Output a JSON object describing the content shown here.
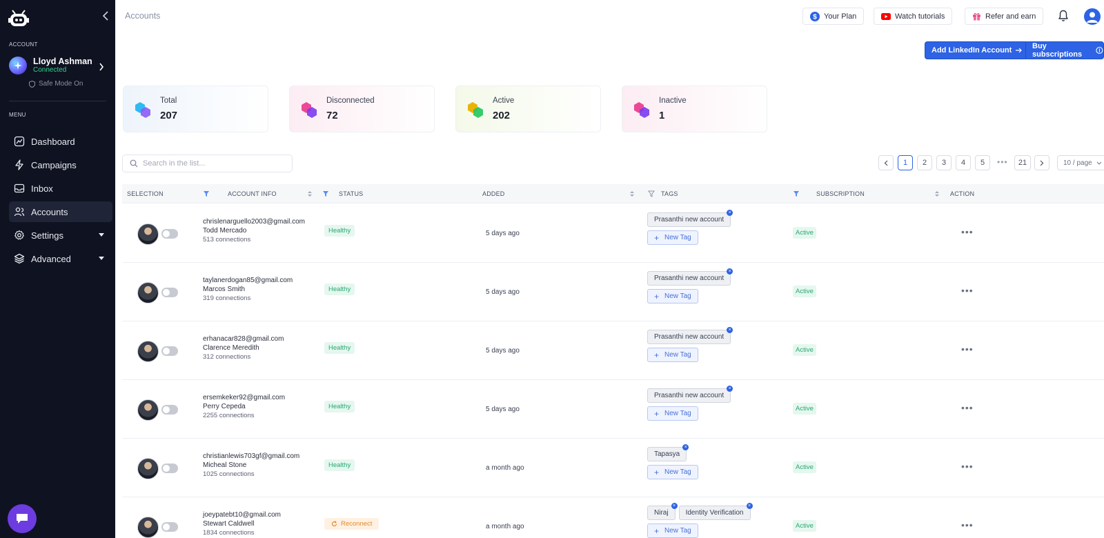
{
  "sidebar": {
    "account_section_label": "ACCOUNT",
    "profile_name": "Lloyd Ashman",
    "profile_status": "Connected",
    "safe_mode": "Safe Mode On",
    "menu_section_label": "MENU",
    "menu": [
      {
        "label": "Dashboard",
        "icon": "dashboard-icon"
      },
      {
        "label": "Campaigns",
        "icon": "lightning-icon"
      },
      {
        "label": "Inbox",
        "icon": "inbox-icon"
      },
      {
        "label": "Accounts",
        "icon": "users-icon",
        "active": true
      },
      {
        "label": "Settings",
        "icon": "gear-icon",
        "has_submenu": true
      },
      {
        "label": "Advanced",
        "icon": "layers-icon",
        "has_submenu": true
      }
    ]
  },
  "header": {
    "title": "Accounts",
    "your_plan": "Your Plan",
    "watch_tutorials": "Watch tutorials",
    "refer_and_earn": "Refer and earn",
    "add_linkedin_account": "Add LinkedIn Account",
    "buy_subscriptions": "Buy subscriptions"
  },
  "stats": [
    {
      "label": "Total",
      "value": "207",
      "bg": "#eef4fb",
      "colors": [
        "#2fb9f5",
        "#8b5cf6"
      ]
    },
    {
      "label": "Disconnected",
      "value": "72",
      "bg": "#fcedf3",
      "colors": [
        "#ec4899",
        "#7c3aed"
      ]
    },
    {
      "label": "Active",
      "value": "202",
      "bg": "#f4f9e9",
      "colors": [
        "#eab308",
        "#22c55e"
      ]
    },
    {
      "label": "Inactive",
      "value": "1",
      "bg": "#fcedf3",
      "colors": [
        "#ec4899",
        "#7c3aed"
      ]
    }
  ],
  "search": {
    "placeholder": "Search in the list..."
  },
  "pagination": {
    "pages": [
      "1",
      "2",
      "3",
      "4",
      "5"
    ],
    "current": "1",
    "ellipsis": "•••",
    "last": "21",
    "page_size": "10 / page"
  },
  "table": {
    "columns": {
      "selection": "SELECTION",
      "account_info": "ACCOUNT INFO",
      "status": "STATUS",
      "added": "ADDED",
      "tags": "TAGS",
      "subscription": "SUBSCRIPTION",
      "action": "ACTION"
    },
    "new_tag_label": "New Tag",
    "rows": [
      {
        "email": "chrislenarguello2003@gmail.com",
        "name": "Todd Mercado",
        "connections": "513 connections",
        "status": "Healthy",
        "status_type": "healthy",
        "added": "5 days ago",
        "tags": [
          "Prasanthi new account"
        ],
        "subscription": "Active"
      },
      {
        "email": "taylanerdogan85@gmail.com",
        "name": "Marcos Smith",
        "connections": "319 connections",
        "status": "Healthy",
        "status_type": "healthy",
        "added": "5 days ago",
        "tags": [
          "Prasanthi new account"
        ],
        "subscription": "Active"
      },
      {
        "email": "erhanacar828@gmail.com",
        "name": "Clarence Meredith",
        "connections": "312 connections",
        "status": "Healthy",
        "status_type": "healthy",
        "added": "5 days ago",
        "tags": [
          "Prasanthi new account"
        ],
        "subscription": "Active"
      },
      {
        "email": "ersemkeker92@gmail.com",
        "name": "Perry Cepeda",
        "connections": "2255 connections",
        "status": "Healthy",
        "status_type": "healthy",
        "added": "5 days ago",
        "tags": [
          "Prasanthi new account"
        ],
        "subscription": "Active"
      },
      {
        "email": "christianlewis703gf@gmail.com",
        "name": "Micheal Stone",
        "connections": "1025 connections",
        "status": "Healthy",
        "status_type": "healthy",
        "added": "a month ago",
        "tags": [
          "Tapasya"
        ],
        "subscription": "Active"
      },
      {
        "email": "joeypatebt10@gmail.com",
        "name": "Stewart Caldwell",
        "connections": "1834 connections",
        "status": "Reconnect",
        "status_type": "reconnect",
        "added": "a month ago",
        "tags": [
          "Niraj",
          "Identity Verification"
        ],
        "subscription": "Active"
      }
    ]
  }
}
